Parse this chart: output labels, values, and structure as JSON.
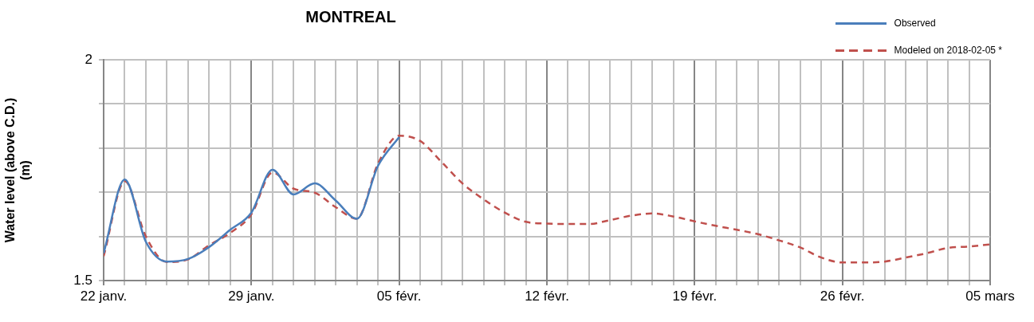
{
  "chart_data": {
    "type": "line",
    "title": "MONTREAL",
    "ylabel": "Water level (above C.D.) (m)",
    "xlim": [
      "2018-01-22",
      "2018-03-05"
    ],
    "xticks": [
      {
        "value": "2018-01-22",
        "label": "22 janv."
      },
      {
        "value": "2018-01-23",
        "label": null
      },
      {
        "value": "2018-01-24",
        "label": null
      },
      {
        "value": "2018-01-25",
        "label": null
      },
      {
        "value": "2018-01-26",
        "label": null
      },
      {
        "value": "2018-01-27",
        "label": null
      },
      {
        "value": "2018-01-28",
        "label": null
      },
      {
        "value": "2018-01-29",
        "label": "29 janv."
      },
      {
        "value": "2018-01-30",
        "label": null
      },
      {
        "value": "2018-01-31",
        "label": null
      },
      {
        "value": "2018-02-01",
        "label": null
      },
      {
        "value": "2018-02-02",
        "label": null
      },
      {
        "value": "2018-02-03",
        "label": null
      },
      {
        "value": "2018-02-04",
        "label": null
      },
      {
        "value": "2018-02-05",
        "label": "05 févr."
      },
      {
        "value": "2018-02-06",
        "label": null
      },
      {
        "value": "2018-02-07",
        "label": null
      },
      {
        "value": "2018-02-08",
        "label": null
      },
      {
        "value": "2018-02-09",
        "label": null
      },
      {
        "value": "2018-02-10",
        "label": null
      },
      {
        "value": "2018-02-11",
        "label": null
      },
      {
        "value": "2018-02-12",
        "label": "12 févr."
      },
      {
        "value": "2018-02-13",
        "label": null
      },
      {
        "value": "2018-02-14",
        "label": null
      },
      {
        "value": "2018-02-15",
        "label": null
      },
      {
        "value": "2018-02-16",
        "label": null
      },
      {
        "value": "2018-02-17",
        "label": null
      },
      {
        "value": "2018-02-18",
        "label": null
      },
      {
        "value": "2018-02-19",
        "label": "19 févr."
      },
      {
        "value": "2018-02-20",
        "label": null
      },
      {
        "value": "2018-02-21",
        "label": null
      },
      {
        "value": "2018-02-22",
        "label": null
      },
      {
        "value": "2018-02-23",
        "label": null
      },
      {
        "value": "2018-02-24",
        "label": null
      },
      {
        "value": "2018-02-25",
        "label": null
      },
      {
        "value": "2018-02-26",
        "label": "26 févr."
      },
      {
        "value": "2018-02-27",
        "label": null
      },
      {
        "value": "2018-02-28",
        "label": null
      },
      {
        "value": "2018-03-01",
        "label": null
      },
      {
        "value": "2018-03-02",
        "label": null
      },
      {
        "value": "2018-03-03",
        "label": null
      },
      {
        "value": "2018-03-04",
        "label": null
      },
      {
        "value": "2018-03-05",
        "label": "05 mars"
      }
    ],
    "ylim": [
      1.5,
      2
    ],
    "yticks": [
      1.5,
      {
        "value": 1.6,
        "label": null
      },
      {
        "value": 1.7,
        "label": null
      },
      {
        "value": 1.8,
        "label": null
      },
      {
        "value": 1.9,
        "label": null
      },
      2
    ],
    "grid": true,
    "legend": "top right",
    "marker": "none",
    "series": [
      {
        "name": "Observed",
        "color": "#4a7ebb",
        "line_style": "solid",
        "x": [
          "2018-01-22",
          "2018-01-23",
          "2018-01-24",
          "2018-01-25",
          "2018-01-26",
          "2018-01-27",
          "2018-01-28",
          "2018-01-29",
          "2018-01-30",
          "2018-01-31",
          "2018-02-01",
          "2018-02-02",
          "2018-02-03",
          "2018-02-04",
          "2018-02-05"
        ],
        "values": [
          1.562,
          1.729,
          1.588,
          1.543,
          1.549,
          1.576,
          1.615,
          1.654,
          1.751,
          1.695,
          1.72,
          1.681,
          1.64,
          1.76,
          1.825
        ]
      },
      {
        "name": "Modeled on 2018-02-05 *",
        "color": "#c0504d",
        "line_style": "dashed",
        "x": [
          "2018-01-22",
          "2018-01-23",
          "2018-01-24",
          "2018-01-25",
          "2018-01-26",
          "2018-01-27",
          "2018-01-28",
          "2018-01-29",
          "2018-01-30",
          "2018-01-31",
          "2018-02-01",
          "2018-02-02",
          "2018-02-03",
          "2018-02-04",
          "2018-02-05",
          "2018-02-06",
          "2018-02-07",
          "2018-02-08",
          "2018-02-09",
          "2018-02-10",
          "2018-02-11",
          "2018-02-12",
          "2018-02-13",
          "2018-02-14",
          "2018-02-15",
          "2018-02-16",
          "2018-02-17",
          "2018-02-18",
          "2018-02-19",
          "2018-02-20",
          "2018-02-21",
          "2018-02-22",
          "2018-02-23",
          "2018-02-24",
          "2018-02-25",
          "2018-02-26",
          "2018-02-27",
          "2018-02-28",
          "2018-03-01",
          "2018-03-02",
          "2018-03-03",
          "2018-03-04",
          "2018-03-05"
        ],
        "values": [
          1.555,
          1.725,
          1.6,
          1.542,
          1.548,
          1.58,
          1.608,
          1.65,
          1.745,
          1.708,
          1.699,
          1.666,
          1.64,
          1.765,
          1.828,
          1.816,
          1.769,
          1.72,
          1.684,
          1.654,
          1.633,
          1.629,
          1.628,
          1.628,
          1.637,
          1.647,
          1.652,
          1.645,
          1.634,
          1.624,
          1.615,
          1.605,
          1.591,
          1.575,
          1.552,
          1.541,
          1.541,
          1.543,
          1.552,
          1.562,
          1.574,
          1.577,
          1.582
        ]
      }
    ]
  }
}
